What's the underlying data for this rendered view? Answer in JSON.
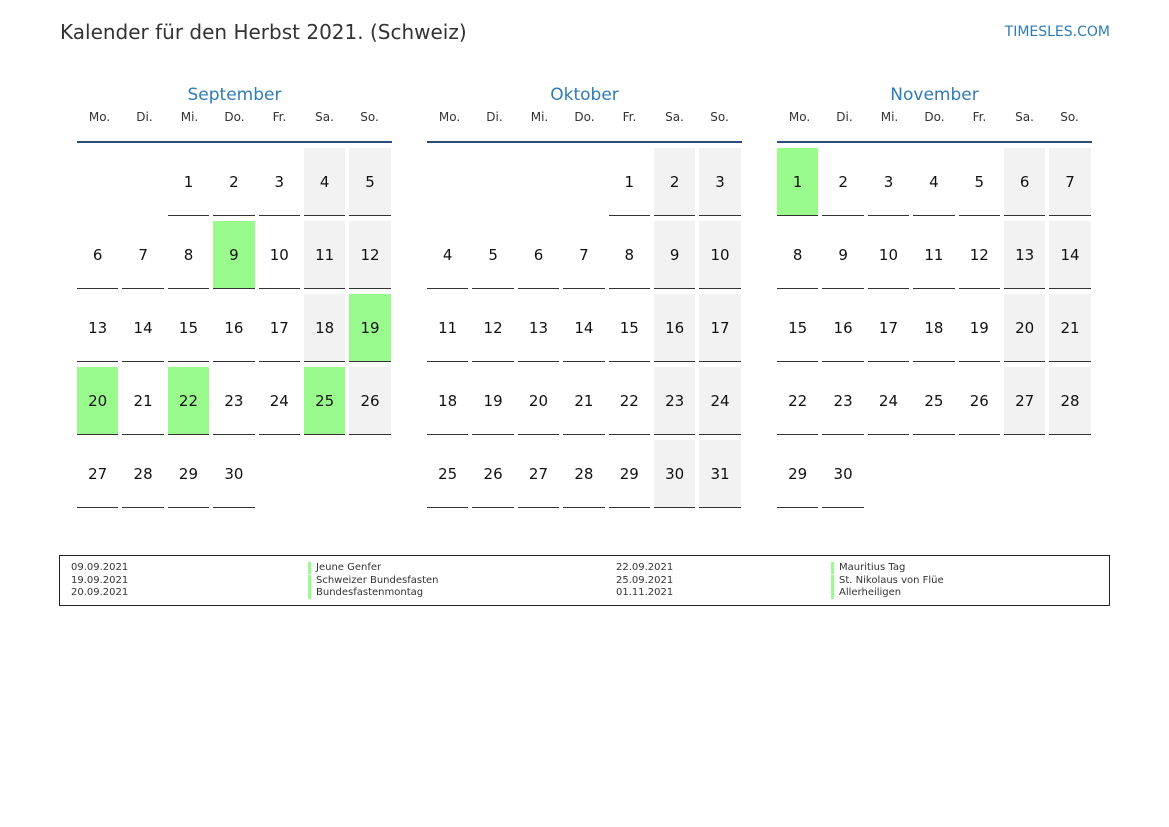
{
  "header": {
    "title": "Kalender für den Herbst 2021. (Schweiz)",
    "site": "TIMESLES.COM"
  },
  "weekdays": [
    "Mo.",
    "Di.",
    "Mi.",
    "Do.",
    "Fr.",
    "Sa.",
    "So."
  ],
  "months": [
    {
      "name": "September",
      "weeks": [
        [
          "",
          "",
          "1",
          "2",
          "3",
          "4",
          "5"
        ],
        [
          "6",
          "7",
          "8",
          "9",
          "10",
          "11",
          "12"
        ],
        [
          "13",
          "14",
          "15",
          "16",
          "17",
          "18",
          "19"
        ],
        [
          "20",
          "21",
          "22",
          "23",
          "24",
          "25",
          "26"
        ],
        [
          "27",
          "28",
          "29",
          "30",
          "",
          "",
          ""
        ]
      ],
      "holidays": [
        "9",
        "19",
        "20",
        "22",
        "25"
      ]
    },
    {
      "name": "Oktober",
      "weeks": [
        [
          "",
          "",
          "",
          "",
          "1",
          "2",
          "3"
        ],
        [
          "4",
          "5",
          "6",
          "7",
          "8",
          "9",
          "10"
        ],
        [
          "11",
          "12",
          "13",
          "14",
          "15",
          "16",
          "17"
        ],
        [
          "18",
          "19",
          "20",
          "21",
          "22",
          "23",
          "24"
        ],
        [
          "25",
          "26",
          "27",
          "28",
          "29",
          "30",
          "31"
        ]
      ],
      "holidays": []
    },
    {
      "name": "November",
      "weeks": [
        [
          "1",
          "2",
          "3",
          "4",
          "5",
          "6",
          "7"
        ],
        [
          "8",
          "9",
          "10",
          "11",
          "12",
          "13",
          "14"
        ],
        [
          "15",
          "16",
          "17",
          "18",
          "19",
          "20",
          "21"
        ],
        [
          "22",
          "23",
          "24",
          "25",
          "26",
          "27",
          "28"
        ],
        [
          "29",
          "30",
          "",
          "",
          "",
          "",
          ""
        ]
      ],
      "holidays": [
        "1"
      ]
    }
  ],
  "colors": {
    "holiday": "#98fb8c",
    "weekend": "#f2f2f2",
    "accent": "#2f7bb6",
    "rule": "#2a4d7a"
  },
  "legend": [
    {
      "date": "09.09.2021",
      "name": "Jeune Genfer"
    },
    {
      "date": "19.09.2021",
      "name": "Schweizer Bundesfasten"
    },
    {
      "date": "20.09.2021",
      "name": "Bundesfastenmontag"
    },
    {
      "date": "22.09.2021",
      "name": "Mauritius Tag"
    },
    {
      "date": "25.09.2021",
      "name": "St. Nikolaus von Flüe"
    },
    {
      "date": "01.11.2021",
      "name": "Allerheiligen"
    }
  ]
}
